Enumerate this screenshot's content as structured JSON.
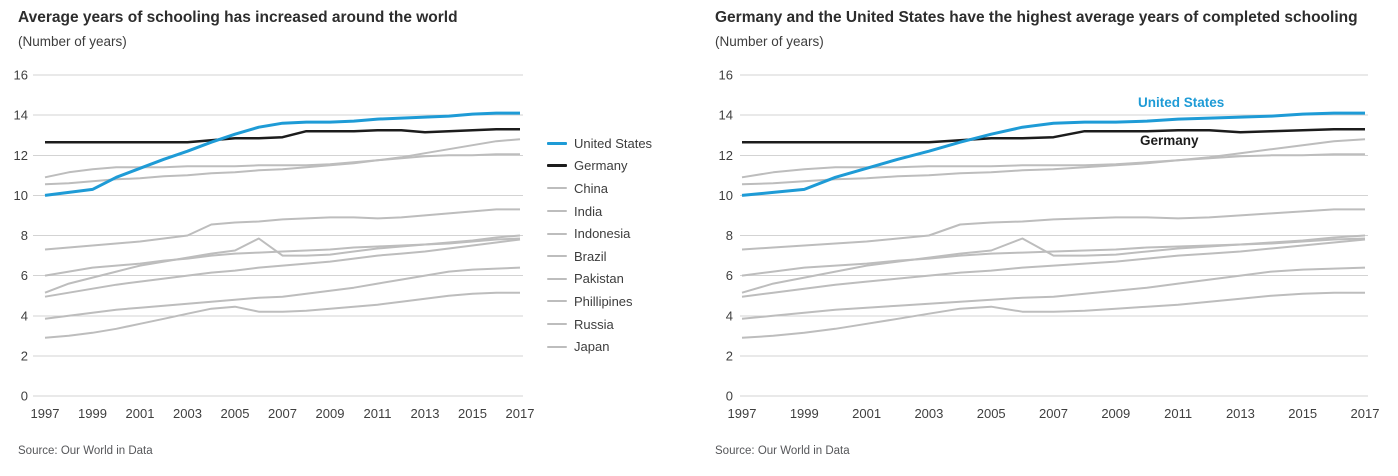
{
  "source_note": "Source: Our World in Data",
  "accent_color": "#1E9BD6",
  "chart_data": [
    {
      "type": "line",
      "title": "Average years of schooling has increased around the world",
      "subtitle": "(Number of years)",
      "source": "Source: Our World in Data",
      "xlabel": "",
      "ylabel": "Number of years",
      "x_range": [
        1997,
        2017
      ],
      "ylim": [
        0,
        16
      ],
      "y_ticks": [
        16,
        14,
        12,
        10,
        8,
        6,
        4,
        2,
        0
      ],
      "x_ticks": [
        1997,
        1999,
        2001,
        2003,
        2005,
        2007,
        2009,
        2011,
        2013,
        2015,
        2017
      ],
      "grid": "horizontal",
      "legend_position": "right",
      "years": [
        1997,
        1998,
        1999,
        2000,
        2001,
        2002,
        2003,
        2004,
        2005,
        2006,
        2007,
        2008,
        2009,
        2010,
        2011,
        2012,
        2013,
        2014,
        2015,
        2016,
        2017
      ],
      "series": [
        {
          "name": "United States",
          "color": "#1E9BD6",
          "width": 3,
          "values": [
            10.0,
            10.15,
            10.3,
            10.9,
            11.35,
            11.8,
            12.2,
            12.65,
            13.05,
            13.4,
            13.6,
            13.65,
            13.65,
            13.7,
            13.8,
            13.85,
            13.9,
            13.95,
            14.05,
            14.1,
            14.1
          ]
        },
        {
          "name": "Germany",
          "color": "#1c1c1c",
          "width": 2.5,
          "values": [
            12.65,
            12.65,
            12.65,
            12.65,
            12.65,
            12.65,
            12.65,
            12.75,
            12.85,
            12.85,
            12.9,
            13.2,
            13.2,
            13.2,
            13.25,
            13.25,
            13.15,
            13.2,
            13.25,
            13.3,
            13.3
          ]
        },
        {
          "name": "China",
          "color": "#bdbdbd",
          "width": 2,
          "values": [
            6.0,
            6.2,
            6.4,
            6.5,
            6.6,
            6.75,
            6.85,
            7.0,
            7.1,
            7.15,
            7.2,
            7.25,
            7.3,
            7.4,
            7.45,
            7.5,
            7.55,
            7.6,
            7.7,
            7.8,
            7.85
          ]
        },
        {
          "name": "India",
          "color": "#bdbdbd",
          "width": 2,
          "values": [
            3.85,
            4.0,
            4.15,
            4.3,
            4.4,
            4.5,
            4.6,
            4.7,
            4.8,
            4.9,
            4.95,
            5.1,
            5.25,
            5.4,
            5.6,
            5.8,
            6.0,
            6.2,
            6.3,
            6.35,
            6.4
          ]
        },
        {
          "name": "Indonesia",
          "color": "#bdbdbd",
          "width": 2,
          "values": [
            5.15,
            5.6,
            5.9,
            6.2,
            6.5,
            6.7,
            6.9,
            7.1,
            7.25,
            7.85,
            7.0,
            7.0,
            7.05,
            7.2,
            7.35,
            7.45,
            7.55,
            7.65,
            7.75,
            7.9,
            8.0
          ]
        },
        {
          "name": "Brazil",
          "color": "#bdbdbd",
          "width": 2,
          "values": [
            4.95,
            5.15,
            5.35,
            5.55,
            5.7,
            5.85,
            6.0,
            6.15,
            6.25,
            6.4,
            6.5,
            6.6,
            6.7,
            6.85,
            7.0,
            7.1,
            7.2,
            7.35,
            7.5,
            7.65,
            7.8
          ]
        },
        {
          "name": "Pakistan",
          "color": "#bdbdbd",
          "width": 2,
          "values": [
            2.9,
            3.0,
            3.15,
            3.35,
            3.6,
            3.85,
            4.1,
            4.35,
            4.45,
            4.2,
            4.2,
            4.25,
            4.35,
            4.45,
            4.55,
            4.7,
            4.85,
            5.0,
            5.1,
            5.15,
            5.15
          ]
        },
        {
          "name": "Phillipines",
          "color": "#bdbdbd",
          "width": 2,
          "values": [
            7.3,
            7.4,
            7.5,
            7.6,
            7.7,
            7.85,
            8.0,
            8.55,
            8.65,
            8.7,
            8.8,
            8.85,
            8.9,
            8.9,
            8.85,
            8.9,
            9.0,
            9.1,
            9.2,
            9.3,
            9.3
          ]
        },
        {
          "name": "Russia",
          "color": "#bdbdbd",
          "width": 2,
          "values": [
            10.9,
            11.15,
            11.3,
            11.4,
            11.4,
            11.4,
            11.45,
            11.45,
            11.45,
            11.5,
            11.5,
            11.5,
            11.55,
            11.65,
            11.75,
            11.85,
            11.95,
            12.0,
            12.0,
            12.05,
            12.05
          ]
        },
        {
          "name": "Japan",
          "color": "#bdbdbd",
          "width": 2,
          "values": [
            10.55,
            10.6,
            10.7,
            10.8,
            10.85,
            10.95,
            11.0,
            11.1,
            11.15,
            11.25,
            11.3,
            11.4,
            11.5,
            11.6,
            11.75,
            11.9,
            12.1,
            12.3,
            12.5,
            12.7,
            12.8
          ]
        }
      ]
    },
    {
      "type": "line",
      "title": "Germany and the United States have the highest average years of completed schooling",
      "subtitle": "(Number of years)",
      "source": "Source: Our World in Data",
      "xlabel": "",
      "ylabel": "Number of years",
      "x_range": [
        1997,
        2017
      ],
      "ylim": [
        0,
        16
      ],
      "y_ticks": [
        16,
        14,
        12,
        10,
        8,
        6,
        4,
        2,
        0
      ],
      "x_ticks": [
        1997,
        1999,
        2001,
        2003,
        2005,
        2007,
        2009,
        2011,
        2013,
        2015,
        2017
      ],
      "grid": "horizontal",
      "legend_position": "none",
      "series_from": 0,
      "inline_labels": [
        {
          "text": "United States",
          "color": "#1E9BD6"
        },
        {
          "text": "Germany",
          "color": "#1c1c1c"
        }
      ]
    }
  ]
}
